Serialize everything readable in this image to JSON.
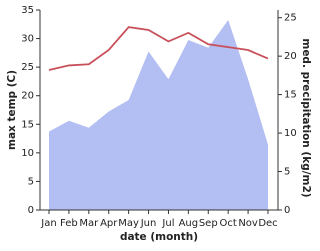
{
  "chart_data": {
    "type": "line",
    "x_label": "date (month)",
    "y_label": "max temp (C)",
    "y2_label": "med. precipitation (kg/m2)",
    "categories": [
      "Jan",
      "Feb",
      "Mar",
      "Apr",
      "May",
      "Jun",
      "Jul",
      "Aug",
      "Sep",
      "Oct",
      "Nov",
      "Dec"
    ],
    "series": [
      {
        "type": "area",
        "axis": "y2",
        "color": "#b3bef2",
        "values": [
          10.2,
          11.6,
          10.7,
          12.8,
          14.3,
          20.6,
          17,
          22.1,
          21.1,
          24.7,
          17,
          8.5
        ]
      },
      {
        "type": "line",
        "color": "#c8505a",
        "values": [
          24.5,
          25.3,
          25.5,
          28,
          32,
          31.5,
          29.5,
          31,
          29,
          28.5,
          28,
          26.5
        ]
      }
    ],
    "ylim": [
      0,
      35
    ],
    "yticks": [
      0,
      5,
      10,
      15,
      20,
      25,
      30,
      35
    ],
    "y2lim": [
      0,
      26
    ],
    "y2ticks": [
      0,
      5,
      10,
      15,
      20,
      25
    ]
  }
}
